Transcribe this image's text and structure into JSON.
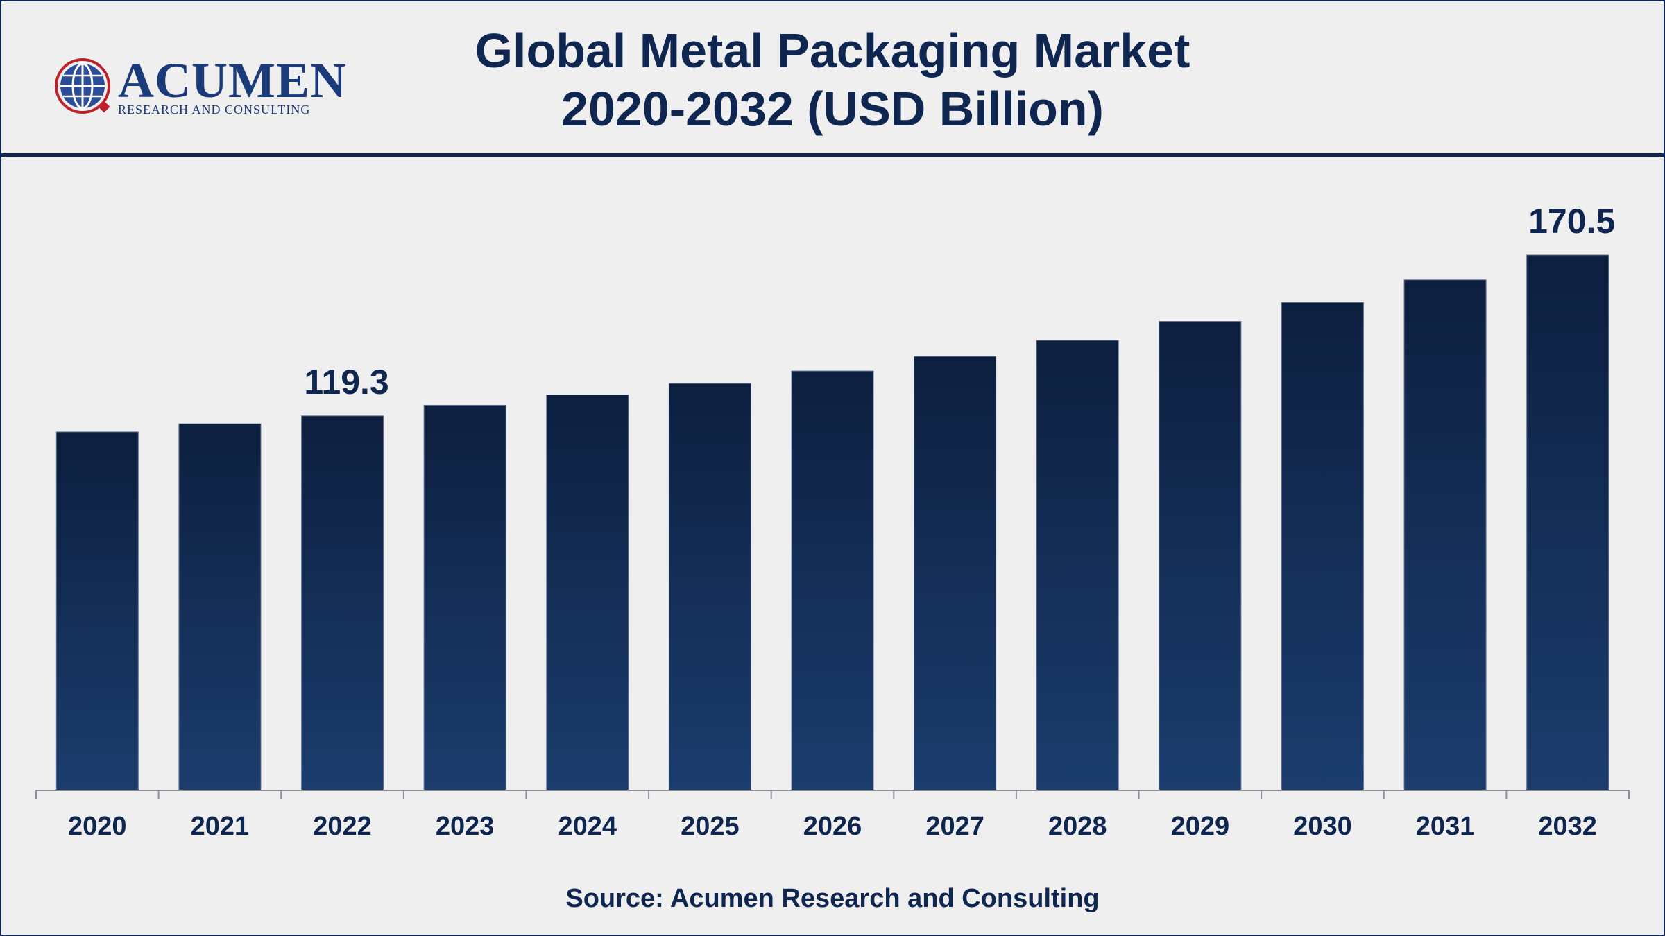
{
  "header": {
    "title_line1": "Global Metal Packaging Market",
    "title_line2": "2020-2032 (USD Billion)"
  },
  "logo": {
    "name": "ACUMEN",
    "tagline": "RESEARCH AND CONSULTING",
    "icon": "globe-icon"
  },
  "colors": {
    "navy": "#0f2650",
    "bar_top": "#0d1f3f",
    "bar_bottom": "#1b3d6e",
    "background": "#efeff0"
  },
  "chart_data": {
    "type": "bar",
    "categories": [
      "2020",
      "2021",
      "2022",
      "2023",
      "2024",
      "2025",
      "2026",
      "2027",
      "2028",
      "2029",
      "2030",
      "2031",
      "2032"
    ],
    "values": [
      114.2,
      116.8,
      119.3,
      122.7,
      126.0,
      129.6,
      133.6,
      138.2,
      143.3,
      149.4,
      155.4,
      162.6,
      170.5
    ],
    "data_labels": [
      {
        "category": "2022",
        "text": "119.3"
      },
      {
        "category": "2032",
        "text": "170.5"
      }
    ],
    "title": "Global Metal Packaging Market 2020-2032 (USD Billion)",
    "xlabel": "",
    "ylabel": "",
    "ylim": [
      0,
      170.5
    ],
    "grid": false,
    "legend": "none"
  },
  "footer": {
    "source": "Source: Acumen Research and Consulting"
  }
}
